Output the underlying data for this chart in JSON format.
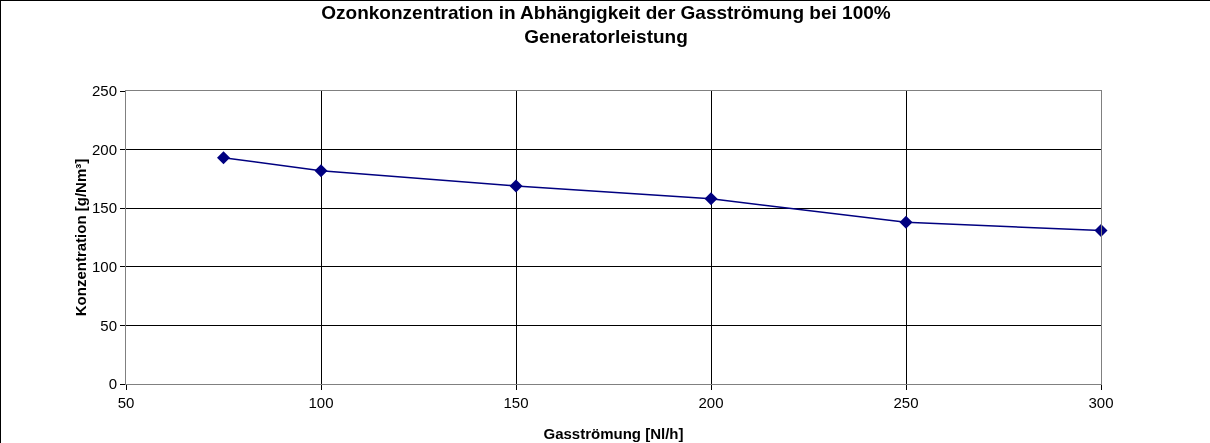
{
  "chart_data": {
    "type": "line",
    "title": "Ozonkonzentration in Abhängigkeit der Gasströmung bei 100% Generatorleistung",
    "xlabel": "Gasströmung [Nl/h]",
    "ylabel": "Konzentration [g/Nm³]",
    "x": [
      75,
      100,
      150,
      200,
      250,
      300
    ],
    "series": [
      {
        "color": "#000080",
        "values": [
          193,
          182,
          169,
          158,
          138,
          131
        ]
      }
    ],
    "xlim": [
      50,
      300
    ],
    "xticks": [
      50,
      100,
      150,
      200,
      250,
      300
    ],
    "ylim": [
      0,
      250
    ],
    "yticks": [
      0,
      50,
      100,
      150,
      200,
      250
    ],
    "grid": true,
    "legend": false,
    "marker": "diamond",
    "line_style": "solid"
  }
}
